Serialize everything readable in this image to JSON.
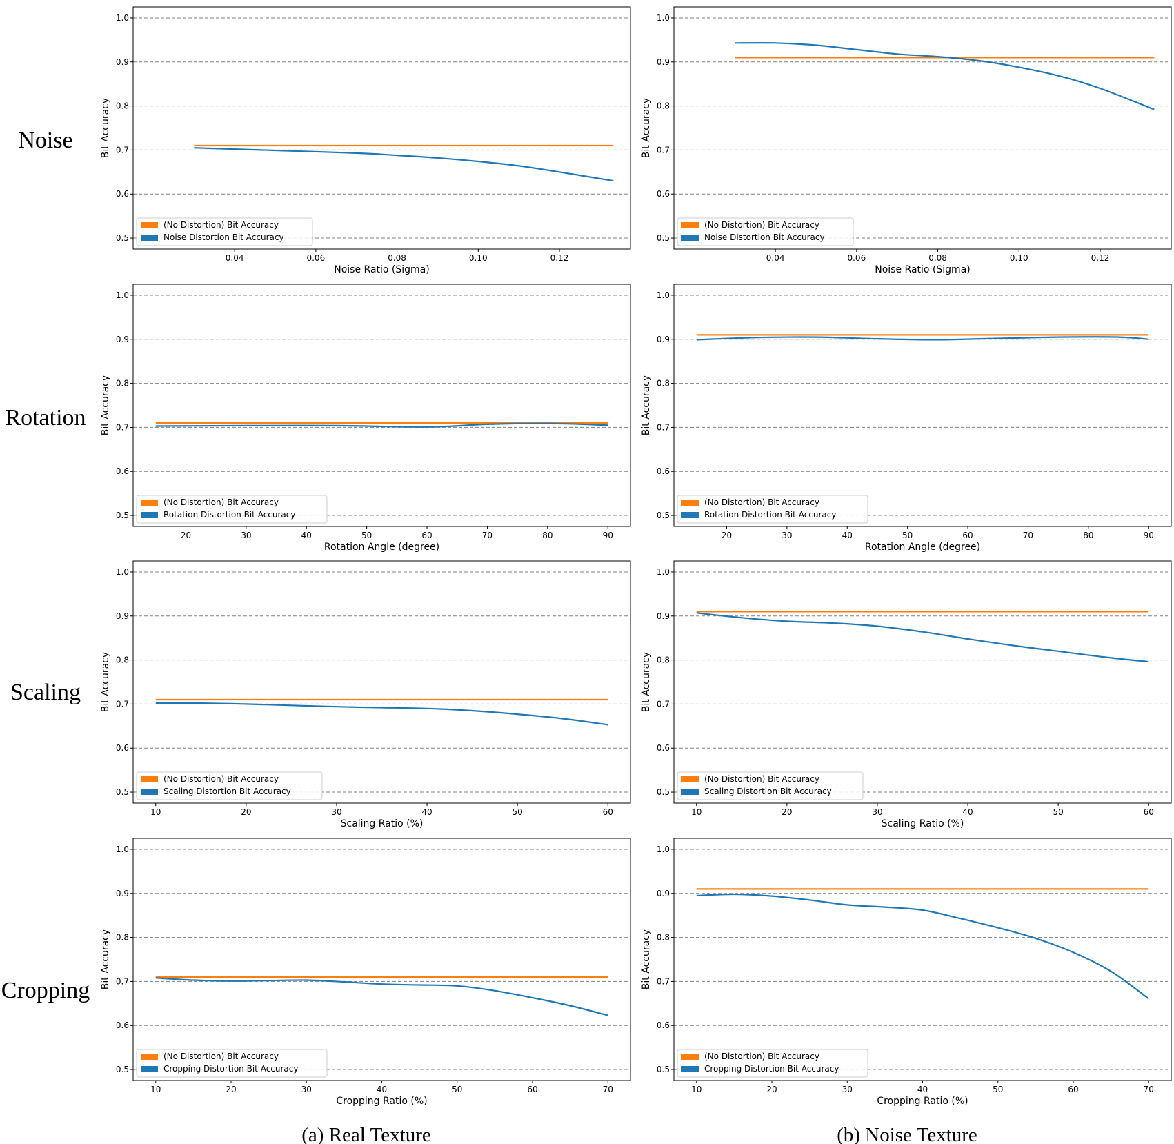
{
  "row_labels": [
    "Noise",
    "Rotation",
    "Scaling",
    "Cropping"
  ],
  "captions": [
    "(a) Real Texture",
    "(b) Noise Texture"
  ],
  "colors": {
    "baseline": "#ff7f0e",
    "distortion": "#1f77b4",
    "grid": "#808080"
  },
  "chart_data": [
    {
      "id": "noise-real",
      "type": "line",
      "row": 0,
      "col": 0,
      "xlabel": "Noise Ratio (Sigma)",
      "ylabel": "Bit Accuracy",
      "xlim": [
        0.015,
        0.1375
      ],
      "ylim": [
        0.475,
        1.025
      ],
      "xticks": [
        0.04,
        0.06,
        0.08,
        0.1,
        0.12
      ],
      "xtick_labels": [
        "0.04",
        "0.06",
        "0.08",
        "0.10",
        "0.12"
      ],
      "yticks": [
        0.5,
        0.6,
        0.7,
        0.8,
        0.9,
        1.0
      ],
      "ytick_labels": [
        "0.5",
        "0.6",
        "0.7",
        "0.8",
        "0.9",
        "1.0"
      ],
      "grid": "y-dashed",
      "legend": "lower-left",
      "series": [
        {
          "name": "(No Distortion) Bit Accuracy",
          "x": [
            0.03,
            0.1333
          ],
          "values": [
            0.71,
            0.71
          ]
        },
        {
          "name": "Noise Distortion Bit Accuracy",
          "x": [
            0.03,
            0.05,
            0.07,
            0.08,
            0.09,
            0.1,
            0.11,
            0.12,
            0.1333
          ],
          "values": [
            0.705,
            0.699,
            0.693,
            0.688,
            0.682,
            0.674,
            0.664,
            0.65,
            0.63
          ]
        }
      ]
    },
    {
      "id": "noise-noise",
      "type": "line",
      "row": 0,
      "col": 1,
      "xlabel": "Noise Ratio (Sigma)",
      "ylabel": "Bit Accuracy",
      "xlim": [
        0.015,
        0.1375
      ],
      "ylim": [
        0.475,
        1.025
      ],
      "xticks": [
        0.04,
        0.06,
        0.08,
        0.1,
        0.12
      ],
      "xtick_labels": [
        "0.04",
        "0.06",
        "0.08",
        "0.10",
        "0.12"
      ],
      "yticks": [
        0.5,
        0.6,
        0.7,
        0.8,
        0.9,
        1.0
      ],
      "ytick_labels": [
        "0.5",
        "0.6",
        "0.7",
        "0.8",
        "0.9",
        "1.0"
      ],
      "grid": "y-dashed",
      "legend": "lower-left",
      "series": [
        {
          "name": "(No Distortion) Bit Accuracy",
          "x": [
            0.03,
            0.1333
          ],
          "values": [
            0.91,
            0.91
          ]
        },
        {
          "name": "Noise Distortion Bit Accuracy",
          "x": [
            0.03,
            0.04,
            0.05,
            0.06,
            0.07,
            0.08,
            0.09,
            0.1,
            0.11,
            0.12,
            0.1333
          ],
          "values": [
            0.943,
            0.943,
            0.938,
            0.928,
            0.918,
            0.912,
            0.903,
            0.888,
            0.868,
            0.84,
            0.792
          ]
        }
      ]
    },
    {
      "id": "rotation-real",
      "type": "line",
      "row": 1,
      "col": 0,
      "xlabel": "Rotation Angle (degree)",
      "ylabel": "Bit Accuracy",
      "xlim": [
        11.25,
        93.75
      ],
      "ylim": [
        0.475,
        1.025
      ],
      "xticks": [
        20,
        30,
        40,
        50,
        60,
        70,
        80,
        90
      ],
      "xtick_labels": [
        "20",
        "30",
        "40",
        "50",
        "60",
        "70",
        "80",
        "90"
      ],
      "yticks": [
        0.5,
        0.6,
        0.7,
        0.8,
        0.9,
        1.0
      ],
      "ytick_labels": [
        "0.5",
        "0.6",
        "0.7",
        "0.8",
        "0.9",
        "1.0"
      ],
      "grid": "y-dashed",
      "legend": "lower-left",
      "series": [
        {
          "name": "(No Distortion) Bit Accuracy",
          "x": [
            15,
            90
          ],
          "values": [
            0.71,
            0.71
          ]
        },
        {
          "name": "Rotation Distortion Bit Accuracy",
          "x": [
            15,
            30,
            45,
            60,
            70,
            80,
            90
          ],
          "values": [
            0.703,
            0.704,
            0.704,
            0.701,
            0.707,
            0.709,
            0.705
          ]
        }
      ]
    },
    {
      "id": "rotation-noise",
      "type": "line",
      "row": 1,
      "col": 1,
      "xlabel": "Rotation Angle (degree)",
      "ylabel": "Bit Accuracy",
      "xlim": [
        11.25,
        93.75
      ],
      "ylim": [
        0.475,
        1.025
      ],
      "xticks": [
        20,
        30,
        40,
        50,
        60,
        70,
        80,
        90
      ],
      "xtick_labels": [
        "20",
        "30",
        "40",
        "50",
        "60",
        "70",
        "80",
        "90"
      ],
      "yticks": [
        0.5,
        0.6,
        0.7,
        0.8,
        0.9,
        1.0
      ],
      "ytick_labels": [
        "0.5",
        "0.6",
        "0.7",
        "0.8",
        "0.9",
        "1.0"
      ],
      "grid": "y-dashed",
      "legend": "lower-left",
      "series": [
        {
          "name": "(No Distortion) Bit Accuracy",
          "x": [
            15,
            90
          ],
          "values": [
            0.91,
            0.91
          ]
        },
        {
          "name": "Rotation Distortion Bit Accuracy",
          "x": [
            15,
            25,
            35,
            45,
            55,
            65,
            75,
            85,
            90
          ],
          "values": [
            0.899,
            0.904,
            0.905,
            0.901,
            0.899,
            0.902,
            0.905,
            0.905,
            0.9
          ]
        }
      ]
    },
    {
      "id": "scaling-real",
      "type": "line",
      "row": 2,
      "col": 0,
      "xlabel": "Scaling Ratio (%)",
      "ylabel": "Bit Accuracy",
      "xlim": [
        7.5,
        62.5
      ],
      "ylim": [
        0.475,
        1.025
      ],
      "xticks": [
        10,
        20,
        30,
        40,
        50,
        60
      ],
      "xtick_labels": [
        "10",
        "20",
        "30",
        "40",
        "50",
        "60"
      ],
      "yticks": [
        0.5,
        0.6,
        0.7,
        0.8,
        0.9,
        1.0
      ],
      "ytick_labels": [
        "0.5",
        "0.6",
        "0.7",
        "0.8",
        "0.9",
        "1.0"
      ],
      "grid": "y-dashed",
      "legend": "lower-left",
      "series": [
        {
          "name": "(No Distortion) Bit Accuracy",
          "x": [
            10,
            60
          ],
          "values": [
            0.71,
            0.71
          ]
        },
        {
          "name": "Scaling Distortion Bit Accuracy",
          "x": [
            10,
            15,
            20,
            25,
            30,
            35,
            40,
            45,
            50,
            55,
            60
          ],
          "values": [
            0.702,
            0.702,
            0.7,
            0.697,
            0.694,
            0.692,
            0.69,
            0.685,
            0.677,
            0.667,
            0.653
          ]
        }
      ]
    },
    {
      "id": "scaling-noise",
      "type": "line",
      "row": 2,
      "col": 1,
      "xlabel": "Scaling Ratio (%)",
      "ylabel": "Bit Accuracy",
      "xlim": [
        7.5,
        62.5
      ],
      "ylim": [
        0.475,
        1.025
      ],
      "xticks": [
        10,
        20,
        30,
        40,
        50,
        60
      ],
      "xtick_labels": [
        "10",
        "20",
        "30",
        "40",
        "50",
        "60"
      ],
      "yticks": [
        0.5,
        0.6,
        0.7,
        0.8,
        0.9,
        1.0
      ],
      "ytick_labels": [
        "0.5",
        "0.6",
        "0.7",
        "0.8",
        "0.9",
        "1.0"
      ],
      "grid": "y-dashed",
      "legend": "lower-left",
      "series": [
        {
          "name": "(No Distortion) Bit Accuracy",
          "x": [
            10,
            60
          ],
          "values": [
            0.91,
            0.91
          ]
        },
        {
          "name": "Scaling Distortion Bit Accuracy",
          "x": [
            10,
            15,
            20,
            25,
            30,
            35,
            40,
            45,
            50,
            55,
            60
          ],
          "values": [
            0.907,
            0.896,
            0.888,
            0.884,
            0.877,
            0.864,
            0.848,
            0.833,
            0.82,
            0.807,
            0.796
          ]
        }
      ]
    },
    {
      "id": "cropping-real",
      "type": "line",
      "row": 3,
      "col": 0,
      "xlabel": "Cropping Ratio (%)",
      "ylabel": "Bit Accuracy",
      "xlim": [
        7,
        73
      ],
      "ylim": [
        0.475,
        1.025
      ],
      "xticks": [
        10,
        20,
        30,
        40,
        50,
        60,
        70
      ],
      "xtick_labels": [
        "10",
        "20",
        "30",
        "40",
        "50",
        "60",
        "70"
      ],
      "yticks": [
        0.5,
        0.6,
        0.7,
        0.8,
        0.9,
        1.0
      ],
      "ytick_labels": [
        "0.5",
        "0.6",
        "0.7",
        "0.8",
        "0.9",
        "1.0"
      ],
      "grid": "y-dashed",
      "legend": "lower-left",
      "series": [
        {
          "name": "(No Distortion) Bit Accuracy",
          "x": [
            10,
            70
          ],
          "values": [
            0.71,
            0.71
          ]
        },
        {
          "name": "Cropping Distortion Bit Accuracy",
          "x": [
            10,
            15,
            20,
            25,
            30,
            35,
            40,
            45,
            50,
            55,
            60,
            65,
            70
          ],
          "values": [
            0.708,
            0.703,
            0.701,
            0.702,
            0.703,
            0.699,
            0.694,
            0.692,
            0.69,
            0.679,
            0.663,
            0.645,
            0.623
          ]
        }
      ]
    },
    {
      "id": "cropping-noise",
      "type": "line",
      "row": 3,
      "col": 1,
      "xlabel": "Cropping Ratio (%)",
      "ylabel": "Bit Accuracy",
      "xlim": [
        7,
        73
      ],
      "ylim": [
        0.475,
        1.025
      ],
      "xticks": [
        10,
        20,
        30,
        40,
        50,
        60,
        70
      ],
      "xtick_labels": [
        "10",
        "20",
        "30",
        "40",
        "50",
        "60",
        "70"
      ],
      "yticks": [
        0.5,
        0.6,
        0.7,
        0.8,
        0.9,
        1.0
      ],
      "ytick_labels": [
        "0.5",
        "0.6",
        "0.7",
        "0.8",
        "0.9",
        "1.0"
      ],
      "grid": "y-dashed",
      "legend": "lower-left",
      "series": [
        {
          "name": "(No Distortion) Bit Accuracy",
          "x": [
            10,
            70
          ],
          "values": [
            0.91,
            0.91
          ]
        },
        {
          "name": "Cropping Distortion Bit Accuracy",
          "x": [
            10,
            15,
            20,
            25,
            30,
            35,
            40,
            45,
            50,
            55,
            60,
            65,
            70
          ],
          "values": [
            0.895,
            0.898,
            0.894,
            0.885,
            0.874,
            0.869,
            0.862,
            0.843,
            0.822,
            0.798,
            0.766,
            0.723,
            0.661
          ]
        }
      ]
    }
  ]
}
